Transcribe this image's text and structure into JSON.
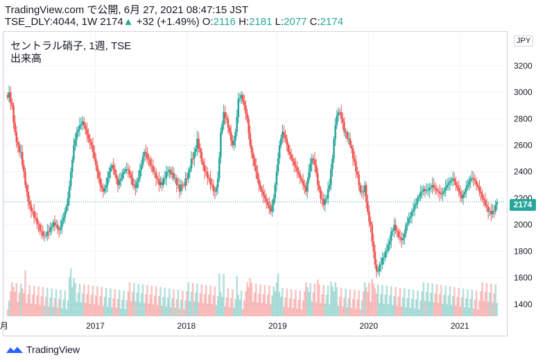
{
  "header": {
    "line1": "TradingView.com で公開, 6月 27, 2021 08:47:15 JST",
    "symbol_prefix": "TSE_DLY:4044, 1W 2174",
    "change_arrow": "▲",
    "change": "+32 (+1.49%)",
    "o_label": "O:",
    "o_value": "2116",
    "h_label": "H:",
    "h_value": "2181",
    "l_label": "L:",
    "l_value": "2077",
    "c_label": "C:",
    "c_value": "2174"
  },
  "legend": {
    "title": "セントラル硝子, 1週, TSE",
    "volume": "出来高"
  },
  "currency": "JPY",
  "last_price_label": "2174",
  "footer": {
    "brand": "TradingView"
  },
  "colors": {
    "up": "#26a69a",
    "down": "#ef5350",
    "grid": "#f0f3fa",
    "axis_text": "#131722"
  },
  "chart_data": {
    "type": "candlestick",
    "ylim": [
      1300,
      3450
    ],
    "y_ticks": [
      1400,
      1600,
      1800,
      2000,
      2200,
      2400,
      2600,
      2800,
      3000,
      3200
    ],
    "x_ticks": [
      {
        "label": "月",
        "date": "2016-01"
      },
      {
        "label": "2017",
        "date": "2017-01"
      },
      {
        "label": "2018",
        "date": "2018-01"
      },
      {
        "label": "2019",
        "date": "2019-01"
      },
      {
        "label": "2020",
        "date": "2020-01"
      },
      {
        "label": "2021",
        "date": "2021-01"
      }
    ],
    "x_start": "2016-01",
    "x_end": "2021-06",
    "last_price": 2174,
    "series_close": [
      3000,
      2900,
      2700,
      2600,
      2550,
      2400,
      2250,
      2150,
      2100,
      2050,
      2000,
      1950,
      1920,
      1950,
      1980,
      2020,
      2000,
      1960,
      2030,
      2100,
      2200,
      2400,
      2600,
      2700,
      2750,
      2780,
      2720,
      2650,
      2600,
      2500,
      2400,
      2300,
      2250,
      2300,
      2400,
      2450,
      2380,
      2300,
      2350,
      2400,
      2420,
      2380,
      2300,
      2280,
      2350,
      2450,
      2550,
      2500,
      2450,
      2400,
      2350,
      2300,
      2300,
      2350,
      2400,
      2380,
      2350,
      2300,
      2250,
      2300,
      2350,
      2400,
      2500,
      2550,
      2650,
      2550,
      2450,
      2400,
      2350,
      2300,
      2250,
      2350,
      2700,
      2850,
      2800,
      2700,
      2600,
      2700,
      2950,
      2980,
      2900,
      2800,
      2600,
      2500,
      2400,
      2300,
      2250,
      2200,
      2150,
      2100,
      2200,
      2400,
      2600,
      2700,
      2650,
      2550,
      2500,
      2450,
      2400,
      2350,
      2300,
      2250,
      2400,
      2500,
      2450,
      2300,
      2200,
      2150,
      2200,
      2300,
      2500,
      2750,
      2850,
      2800,
      2700,
      2650,
      2600,
      2500,
      2400,
      2300,
      2250,
      2300,
      2100,
      2000,
      1800,
      1650,
      1700,
      1750,
      1800,
      1850,
      1950,
      2000,
      1950,
      1900,
      1900,
      2000,
      2050,
      2100,
      2150,
      2200,
      2250,
      2270,
      2260,
      2280,
      2300,
      2270,
      2250,
      2230,
      2260,
      2300,
      2330,
      2350,
      2300,
      2250,
      2200,
      2250,
      2300,
      2350,
      2340,
      2300,
      2250,
      2200,
      2150,
      2100,
      2080,
      2100,
      2174
    ],
    "volume_note": "weekly volume histogram in lower pane"
  }
}
